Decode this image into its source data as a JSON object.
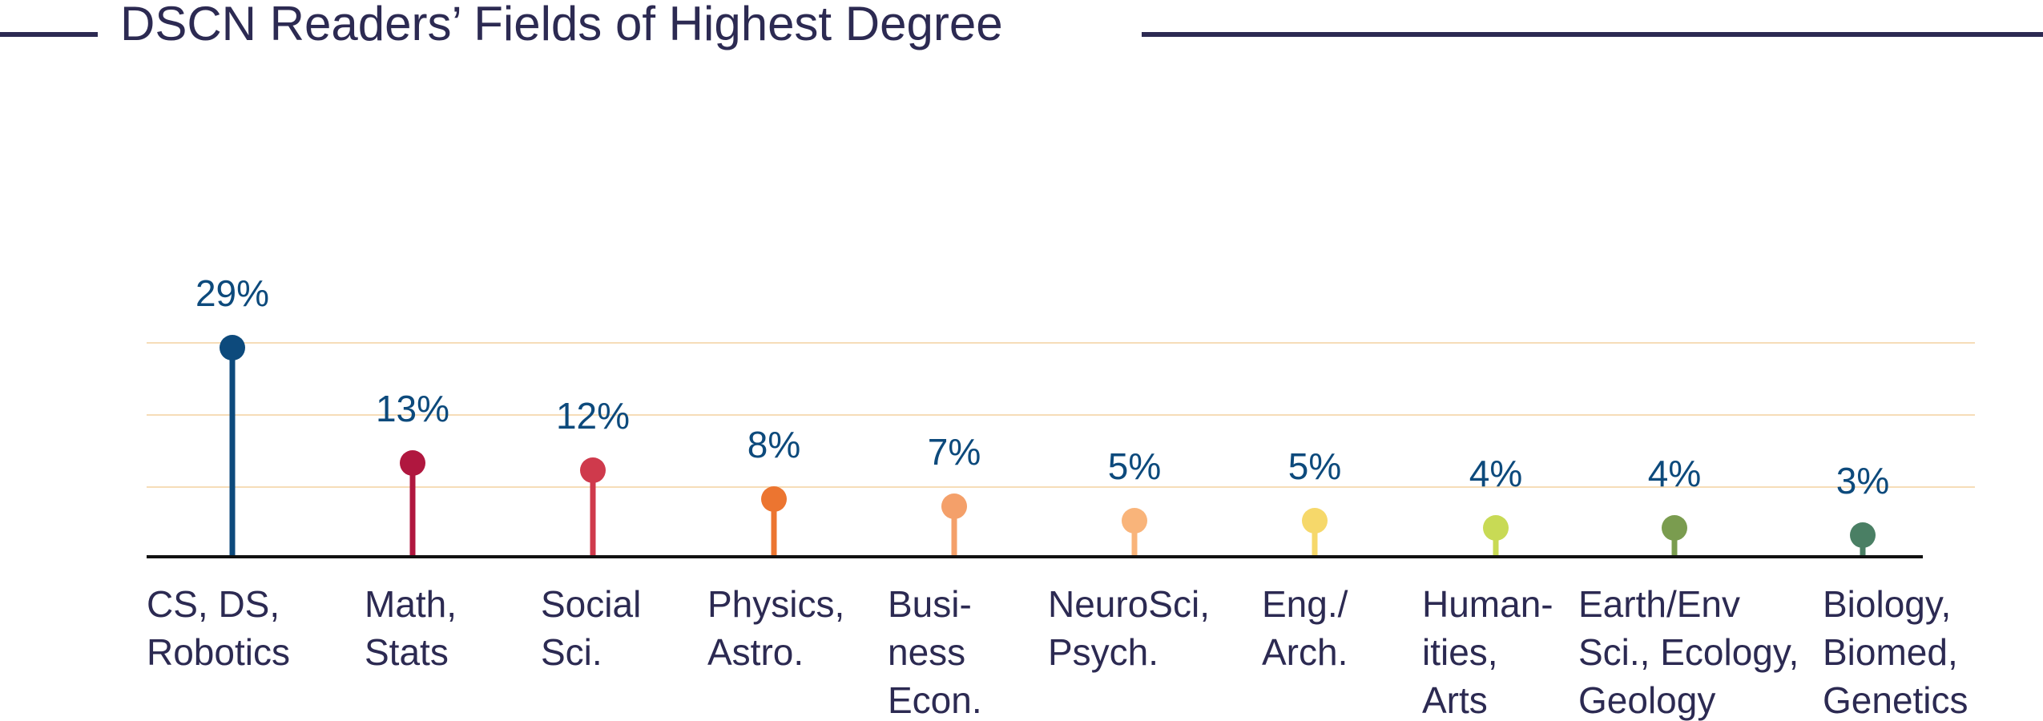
{
  "chart_data": {
    "type": "lollipop",
    "title": "DSCN Readers’ Fields of Highest Degree",
    "xlabel": "",
    "ylabel": "",
    "ylim": [
      0,
      32
    ],
    "grid": true,
    "legend": "none",
    "value_suffix": "%",
    "categories": [
      [
        "CS, DS,",
        "Robotics"
      ],
      [
        "Math,",
        "Stats"
      ],
      [
        "Social",
        "Sci."
      ],
      [
        "Physics,",
        "Astro."
      ],
      [
        "Busi-",
        "ness",
        "Econ."
      ],
      [
        "NeuroSci,",
        "Psych."
      ],
      [
        "Eng./",
        "Arch."
      ],
      [
        "Human-",
        "ities,",
        "Arts"
      ],
      [
        "Earth/Env",
        "Sci., Ecology,",
        "Geology"
      ],
      [
        "Biology,",
        "Biomed,",
        "Genetics"
      ]
    ],
    "values": [
      29,
      13,
      12,
      8,
      7,
      5,
      5,
      4,
      4,
      3
    ],
    "colors": [
      "#0d4a7c",
      "#b0173f",
      "#cf3a4c",
      "#ec7530",
      "#f4a06a",
      "#f9b47a",
      "#f6d86a",
      "#c8da55",
      "#7a9c4f",
      "#4a7f64"
    ],
    "title_color": "#2c2a52",
    "label_color": "#0d4a7c",
    "category_color": "#2c2a52",
    "grid_color": "#f6ddb8",
    "axis_color": "#111111"
  }
}
